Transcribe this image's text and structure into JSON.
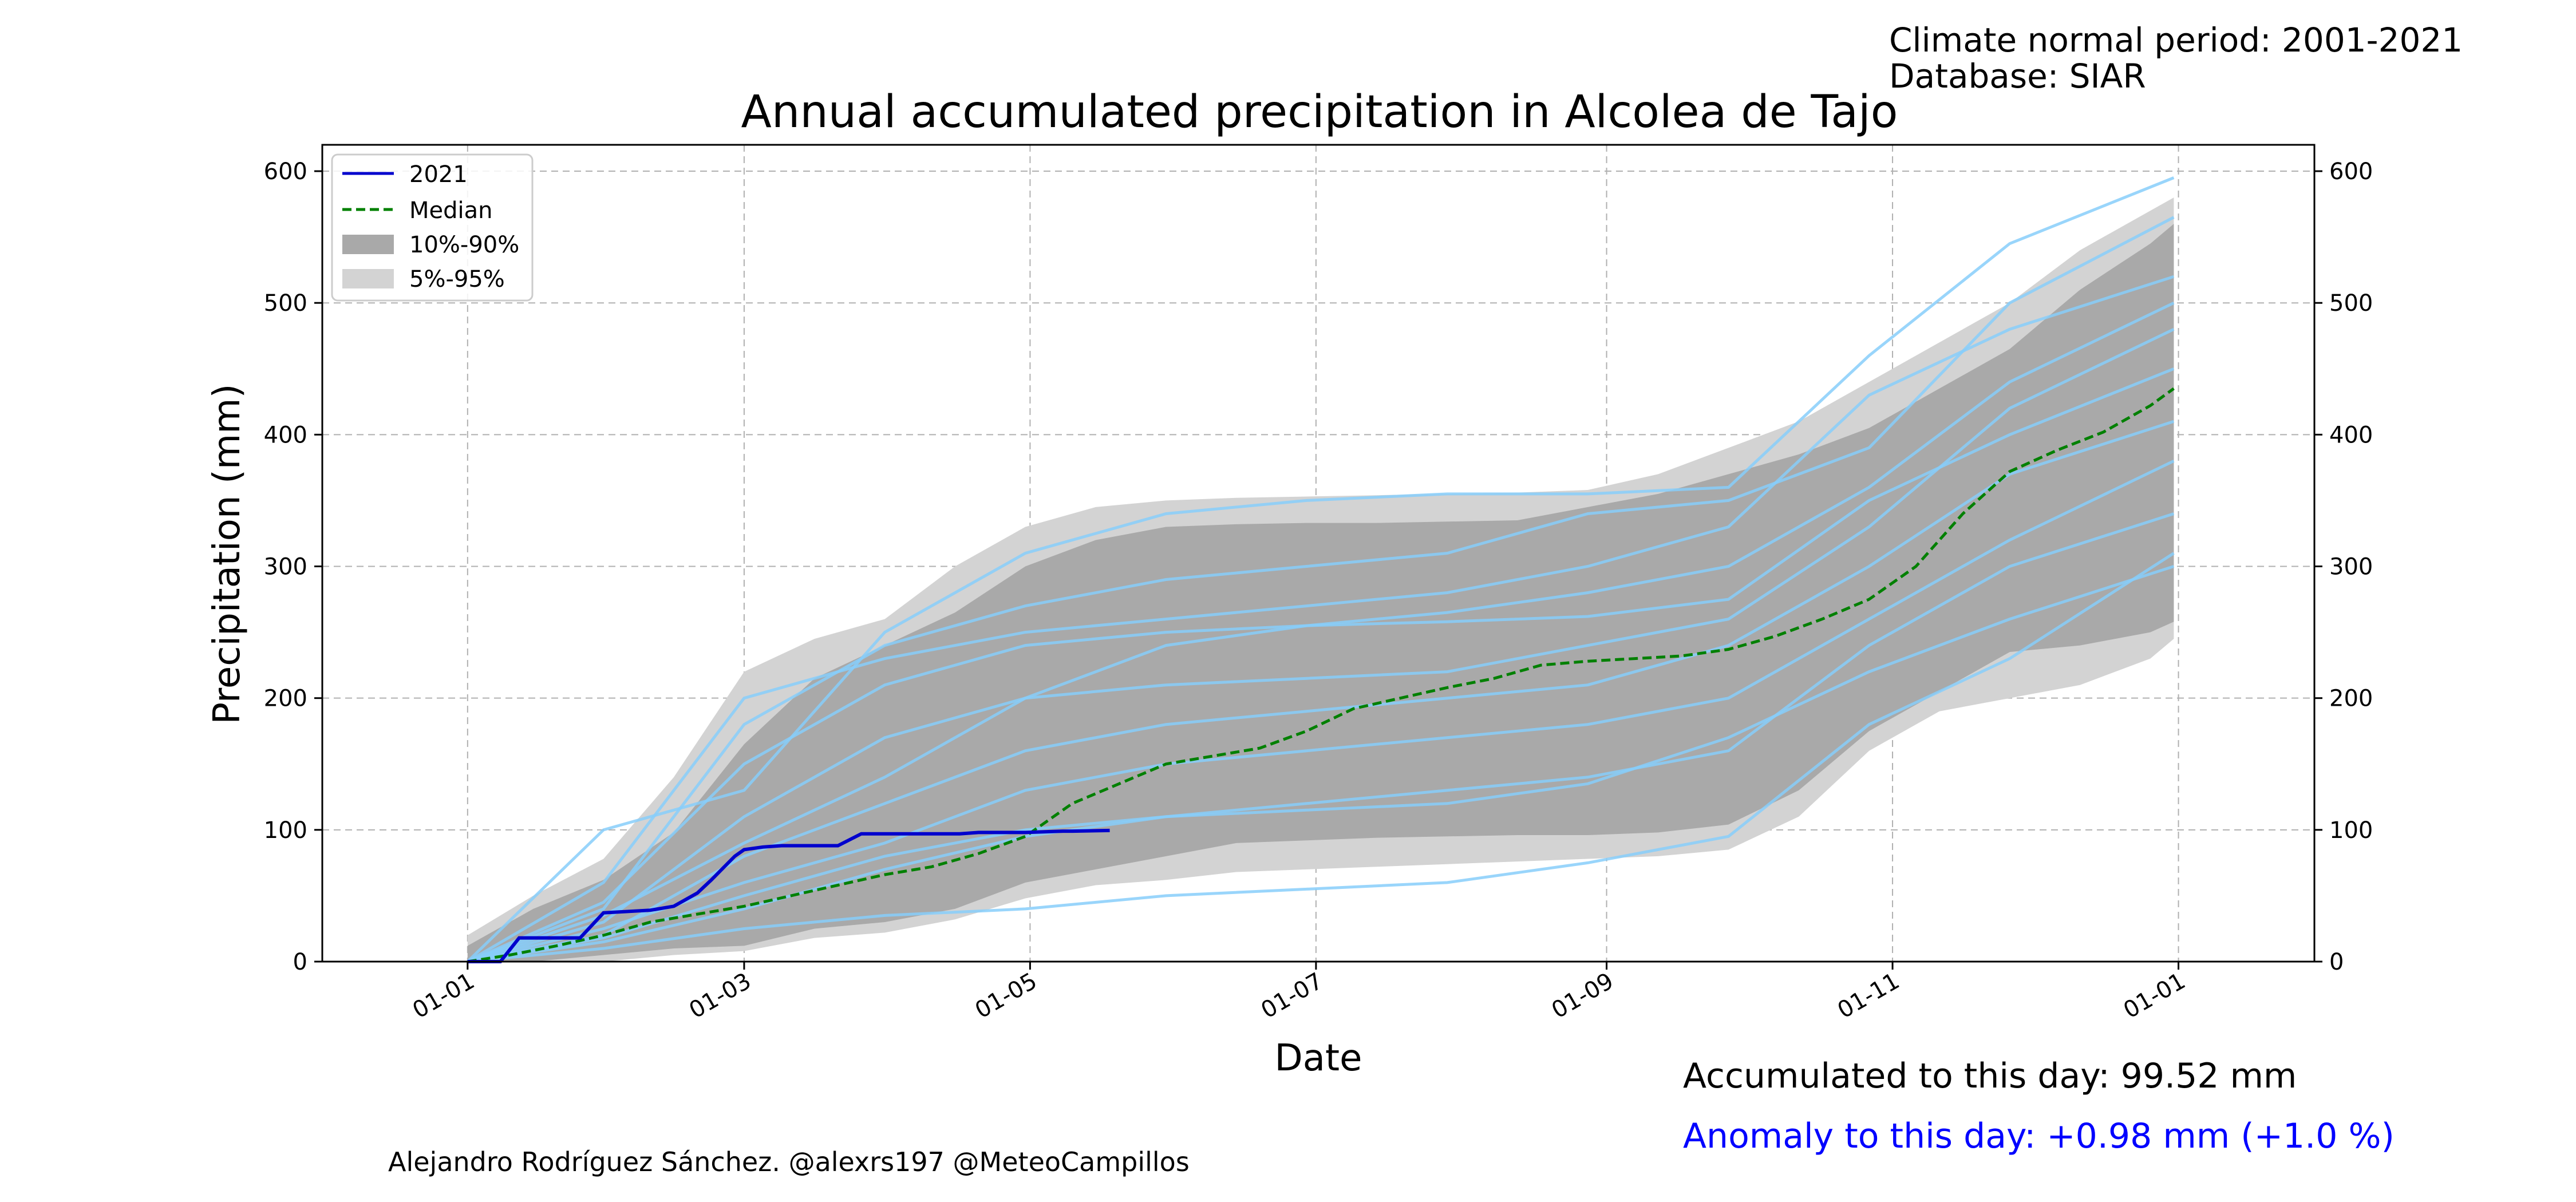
{
  "meta": {
    "climate_period": "Climate normal period: 2001-2021",
    "database": "Database: SIAR"
  },
  "footer": {
    "accumulated": "Accumulated to this day: 99.52 mm",
    "anomaly": "Anomaly to this day: +0.98 mm (+1.0 %)",
    "author": "Alejandro Rodríguez Sánchez. @alexrs197 @MeteoCampillos"
  },
  "colors": {
    "current_year": "#0000cd",
    "median": "#008000",
    "band_10_90": "#a9a9a9",
    "band_5_95": "#d3d3d3",
    "historical_years": "#87cefa",
    "anomaly_text": "#0000ff"
  },
  "chart_data": {
    "type": "line",
    "title": "Annual accumulated precipitation in Alcolea de Tajo",
    "xlabel": "Date",
    "ylabel": "Precipitation (mm)",
    "x_unit": "day_of_year",
    "xlim": [
      -30,
      395
    ],
    "ylim": [
      0,
      620
    ],
    "x_ticks": [
      {
        "day": 1,
        "label": "01-01"
      },
      {
        "day": 60,
        "label": "01-03"
      },
      {
        "day": 121,
        "label": "01-05"
      },
      {
        "day": 182,
        "label": "01-07"
      },
      {
        "day": 244,
        "label": "01-09"
      },
      {
        "day": 305,
        "label": "01-11"
      },
      {
        "day": 366,
        "label": "01-01"
      }
    ],
    "y_ticks": [
      0,
      100,
      200,
      300,
      400,
      500,
      600
    ],
    "grid": true,
    "legend_position": "top-left",
    "legend": [
      "2021",
      "Median",
      "10%-90%",
      "5%-95%"
    ],
    "series": [
      {
        "name": "2021",
        "kind": "line",
        "x": [
          1,
          8,
          12,
          25,
          30,
          40,
          45,
          50,
          53,
          58,
          60,
          64,
          68,
          70,
          75,
          80,
          85,
          90,
          95,
          100,
          104,
          106,
          110,
          120,
          128,
          130,
          138
        ],
        "y": [
          0,
          0,
          18,
          18,
          37,
          39,
          42,
          52,
          62,
          80,
          85,
          87,
          88,
          88,
          88,
          88,
          97,
          97,
          97,
          97,
          97,
          97,
          98,
          98,
          99,
          99,
          99.52
        ]
      },
      {
        "name": "Median",
        "kind": "dashed",
        "x": [
          1,
          10,
          20,
          30,
          40,
          50,
          60,
          70,
          80,
          90,
          100,
          110,
          120,
          130,
          140,
          150,
          160,
          170,
          180,
          190,
          200,
          210,
          220,
          230,
          240,
          250,
          260,
          270,
          280,
          290,
          300,
          310,
          320,
          330,
          340,
          350,
          360,
          365
        ],
        "y": [
          0,
          5,
          12,
          20,
          30,
          36,
          42,
          50,
          58,
          66,
          72,
          82,
          95,
          120,
          135,
          150,
          156,
          162,
          175,
          192,
          200,
          208,
          215,
          225,
          228,
          230,
          232,
          237,
          247,
          260,
          275,
          300,
          340,
          372,
          388,
          402,
          422,
          435
        ]
      },
      {
        "name": "10%-90%",
        "kind": "band",
        "x": [
          1,
          15,
          30,
          45,
          60,
          75,
          90,
          105,
          120,
          135,
          150,
          165,
          180,
          195,
          210,
          225,
          240,
          255,
          270,
          285,
          300,
          315,
          330,
          345,
          360,
          365
        ],
        "low": [
          0,
          0,
          5,
          10,
          12,
          25,
          30,
          40,
          60,
          70,
          80,
          90,
          92,
          94,
          95,
          96,
          96,
          98,
          104,
          130,
          175,
          205,
          235,
          240,
          250,
          258
        ],
        "high": [
          12,
          40,
          62,
          98,
          165,
          215,
          240,
          265,
          300,
          320,
          330,
          332,
          333,
          333,
          334,
          335,
          345,
          355,
          370,
          385,
          405,
          435,
          465,
          510,
          545,
          560
        ]
      },
      {
        "name": "5%-95%",
        "kind": "band",
        "x": [
          1,
          15,
          30,
          45,
          60,
          75,
          90,
          105,
          120,
          135,
          150,
          165,
          180,
          195,
          210,
          225,
          240,
          255,
          270,
          285,
          300,
          315,
          330,
          345,
          360,
          365
        ],
        "low": [
          0,
          0,
          0,
          5,
          8,
          18,
          22,
          32,
          48,
          58,
          62,
          68,
          70,
          72,
          74,
          76,
          78,
          80,
          85,
          110,
          160,
          190,
          200,
          210,
          230,
          245
        ],
        "high": [
          20,
          50,
          78,
          140,
          220,
          245,
          260,
          300,
          330,
          345,
          350,
          352,
          353,
          354,
          355,
          356,
          358,
          370,
          390,
          410,
          440,
          470,
          500,
          540,
          570,
          580
        ]
      },
      {
        "name": "",
        "kind": "historical",
        "x": [
          1,
          30,
          60,
          90,
          120,
          150,
          180,
          210,
          240,
          270,
          300,
          330,
          365
        ],
        "y": [
          0,
          100,
          130,
          250,
          310,
          340,
          350,
          355,
          355,
          360,
          460,
          545,
          595
        ]
      },
      {
        "name": "",
        "kind": "historical",
        "x": [
          1,
          30,
          60,
          90,
          120,
          150,
          180,
          210,
          240,
          270,
          300,
          330,
          365
        ],
        "y": [
          0,
          40,
          180,
          240,
          270,
          290,
          300,
          310,
          340,
          350,
          390,
          500,
          565
        ]
      },
      {
        "name": "",
        "kind": "historical",
        "x": [
          1,
          30,
          60,
          90,
          120,
          150,
          180,
          210,
          240,
          270,
          300,
          330,
          365
        ],
        "y": [
          0,
          60,
          200,
          230,
          250,
          260,
          270,
          280,
          300,
          330,
          430,
          480,
          520
        ]
      },
      {
        "name": "",
        "kind": "historical",
        "x": [
          1,
          30,
          60,
          90,
          120,
          150,
          180,
          210,
          240,
          270,
          300,
          330,
          365
        ],
        "y": [
          0,
          30,
          110,
          170,
          200,
          210,
          215,
          220,
          240,
          260,
          330,
          420,
          480
        ]
      },
      {
        "name": "",
        "kind": "historical",
        "x": [
          1,
          30,
          60,
          90,
          120,
          150,
          180,
          210,
          240,
          270,
          300,
          330,
          365
        ],
        "y": [
          0,
          20,
          80,
          120,
          160,
          180,
          190,
          200,
          210,
          240,
          300,
          370,
          410
        ]
      },
      {
        "name": "",
        "kind": "historical",
        "x": [
          1,
          30,
          60,
          90,
          120,
          150,
          180,
          210,
          240,
          270,
          300,
          330,
          365
        ],
        "y": [
          0,
          25,
          60,
          90,
          130,
          150,
          160,
          170,
          180,
          200,
          260,
          320,
          380
        ]
      },
      {
        "name": "",
        "kind": "historical",
        "x": [
          1,
          30,
          60,
          90,
          120,
          150,
          180,
          210,
          240,
          270,
          300,
          330,
          365
        ],
        "y": [
          0,
          15,
          40,
          70,
          95,
          110,
          120,
          130,
          140,
          160,
          240,
          300,
          340
        ]
      },
      {
        "name": "",
        "kind": "historical",
        "x": [
          1,
          30,
          60,
          90,
          120,
          150,
          180,
          210,
          240,
          270,
          300,
          330,
          365
        ],
        "y": [
          0,
          10,
          25,
          35,
          40,
          50,
          55,
          60,
          75,
          95,
          180,
          230,
          310
        ]
      },
      {
        "name": "",
        "kind": "historical",
        "x": [
          1,
          30,
          60,
          90,
          120,
          150,
          180,
          210,
          240,
          270,
          300,
          330,
          365
        ],
        "y": [
          0,
          35,
          90,
          140,
          200,
          240,
          255,
          265,
          280,
          300,
          360,
          440,
          500
        ]
      },
      {
        "name": "",
        "kind": "historical",
        "x": [
          1,
          30,
          60,
          90,
          120,
          150,
          180,
          210,
          240,
          270,
          300,
          330,
          365
        ],
        "y": [
          0,
          45,
          150,
          210,
          240,
          250,
          255,
          258,
          262,
          275,
          350,
          400,
          450
        ]
      },
      {
        "name": "",
        "kind": "historical",
        "x": [
          1,
          30,
          60,
          90,
          120,
          150,
          180,
          210,
          240,
          270,
          300,
          330,
          365
        ],
        "y": [
          0,
          18,
          50,
          80,
          100,
          110,
          115,
          120,
          135,
          170,
          220,
          260,
          300
        ]
      }
    ]
  }
}
